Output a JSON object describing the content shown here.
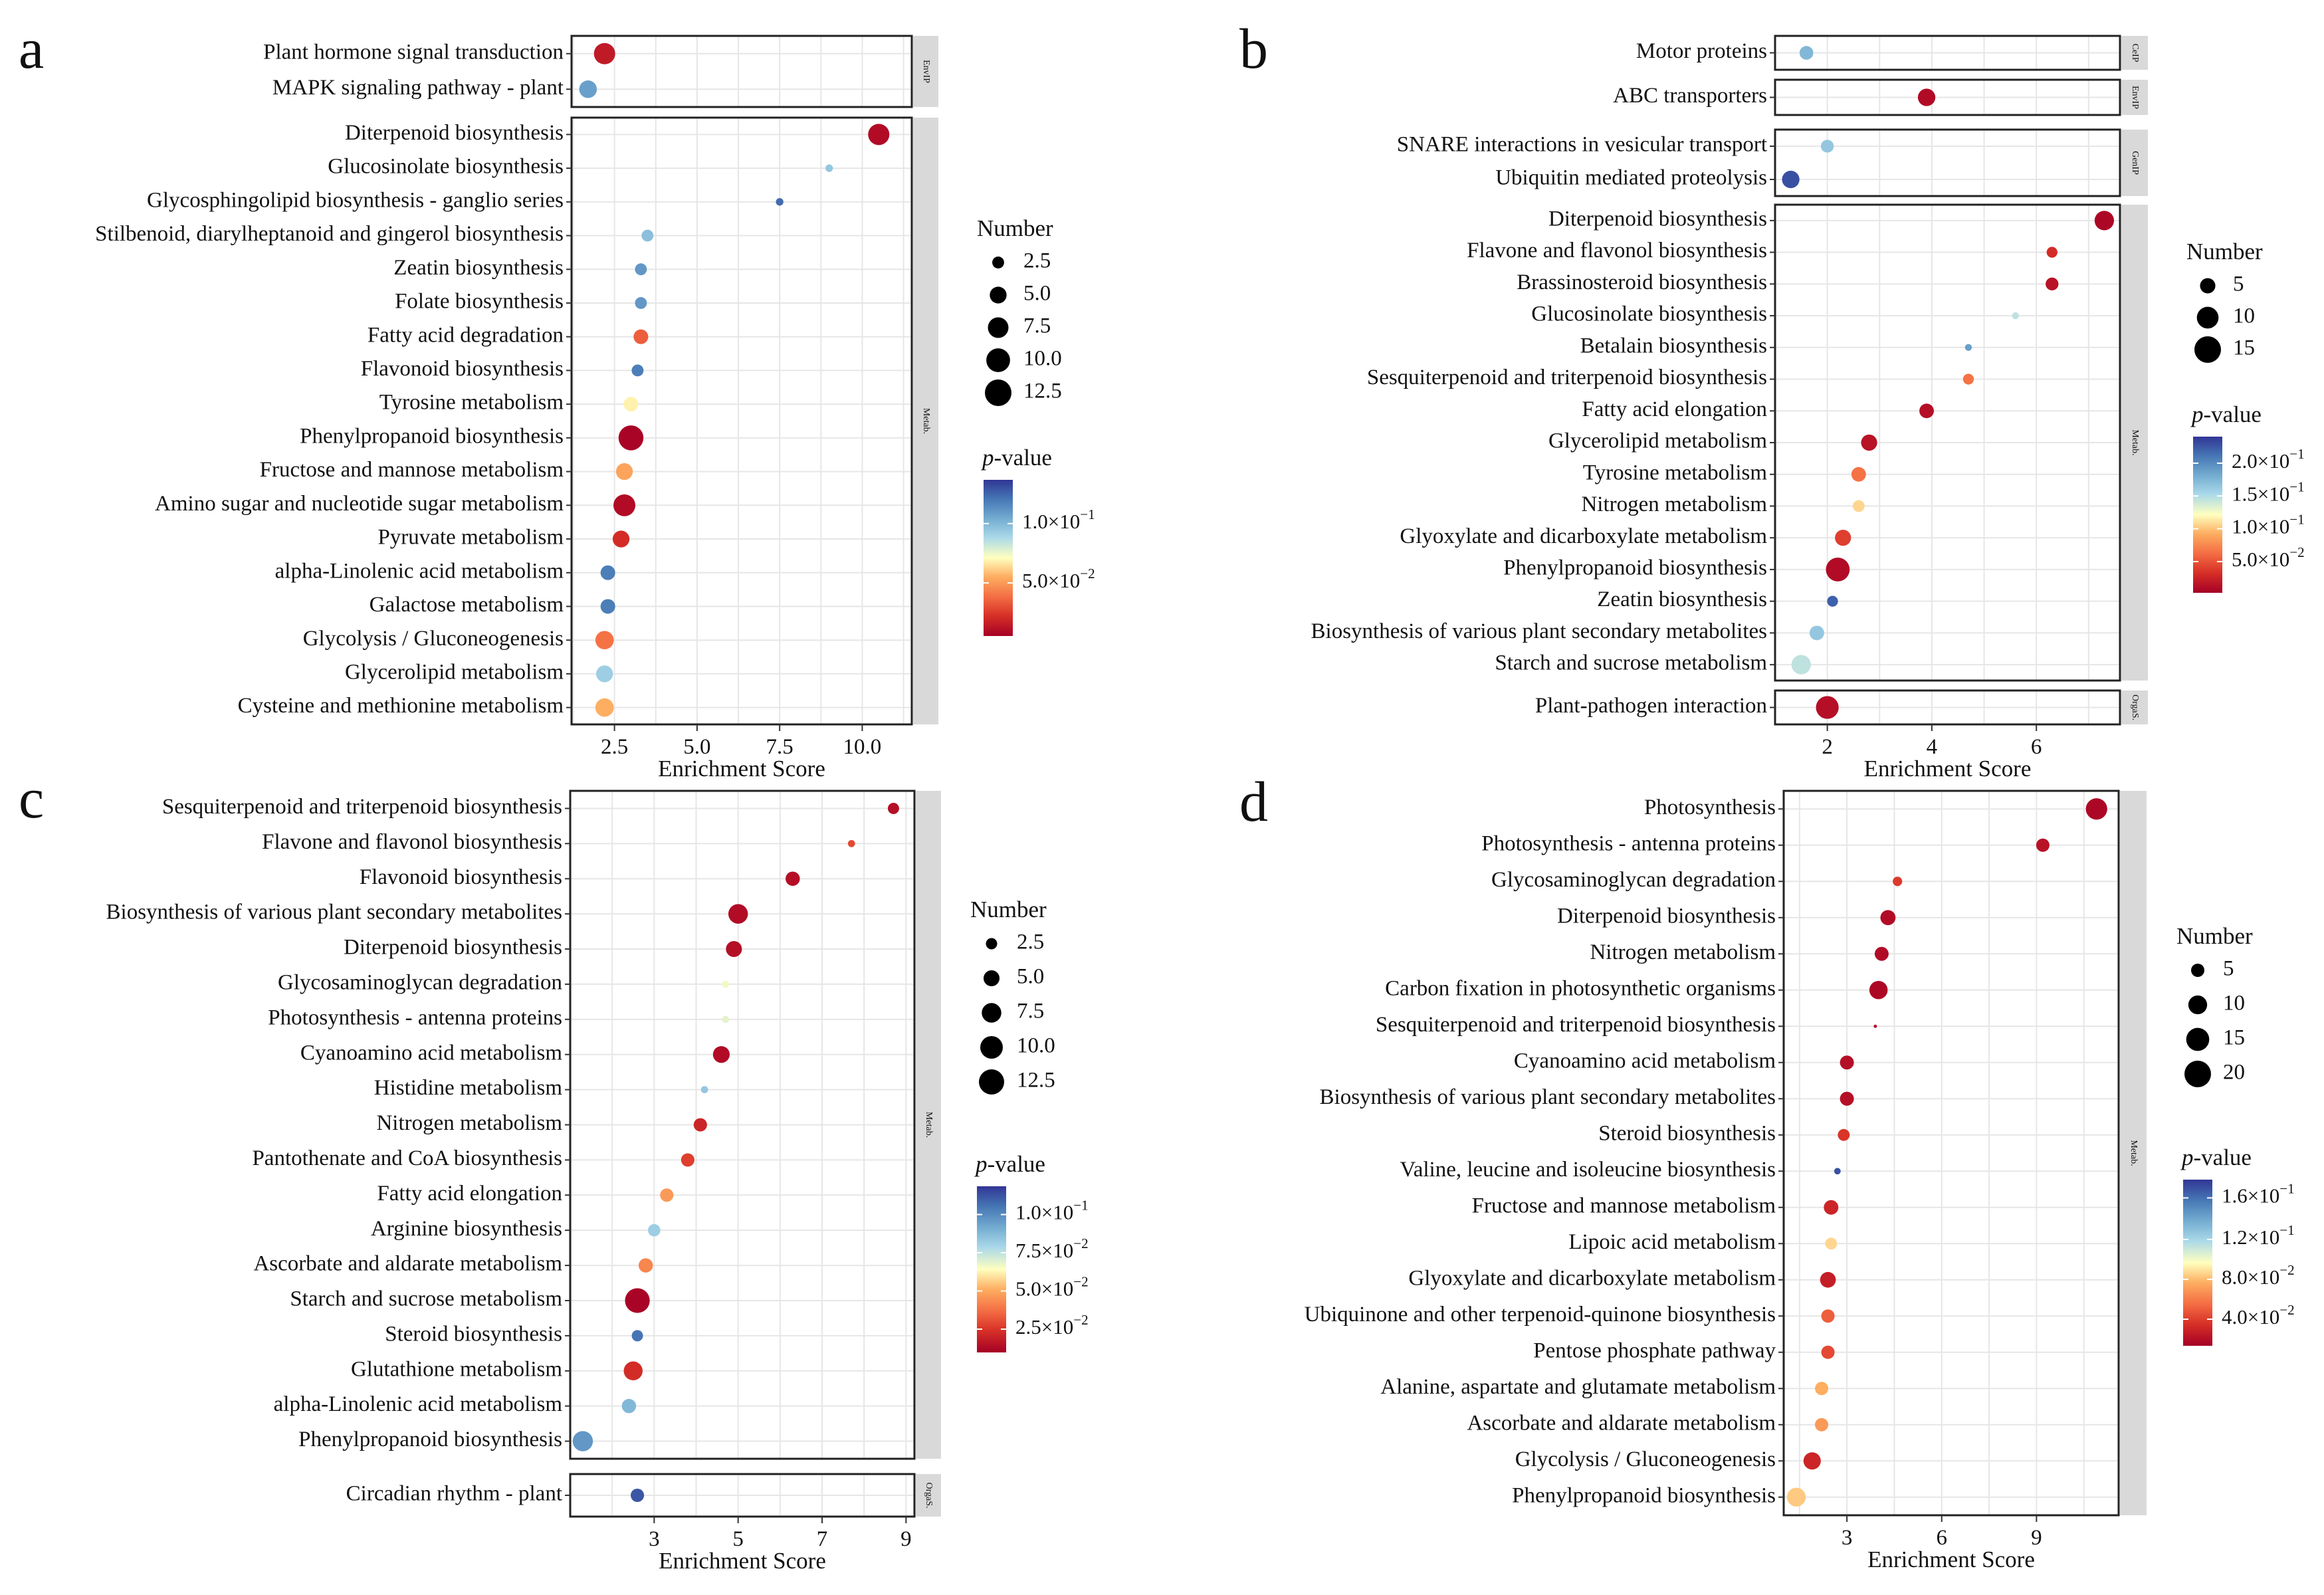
{
  "chart_data": [
    {
      "type": "scatter",
      "panel_letter": "a",
      "xlabel": "Enrichment Score",
      "xlim": [
        1.2,
        11.5
      ],
      "xticks": [
        2.5,
        5.0,
        7.5,
        10.0
      ],
      "xtick_labels": [
        "2.5",
        "5.0",
        "7.5",
        "10.0"
      ],
      "groups": [
        {
          "label": "EnvIP",
          "points": [
            {
              "term": "Plant hormone signal transduction",
              "x": 2.2,
              "number": 8,
              "color": 0.93
            },
            {
              "term": "MAPK signaling pathway - plant",
              "x": 1.7,
              "number": 5.5,
              "color": 0.22
            }
          ]
        },
        {
          "label": "Metab.",
          "points": [
            {
              "term": "Diterpenoid biosynthesis",
              "x": 10.5,
              "number": 8,
              "color": 0.97
            },
            {
              "term": "Glucosinolate biosynthesis",
              "x": 9.0,
              "number": 1,
              "color": 0.32
            },
            {
              "term": "Glycosphingolipid biosynthesis - ganglio series",
              "x": 7.5,
              "number": 1,
              "color": 0.1
            },
            {
              "term": "Stilbenoid, diarylheptanoid and gingerol biosynthesis",
              "x": 3.5,
              "number": 2.5,
              "color": 0.3
            },
            {
              "term": "Zeatin biosynthesis",
              "x": 3.3,
              "number": 2.5,
              "color": 0.2
            },
            {
              "term": "Folate biosynthesis",
              "x": 3.3,
              "number": 2.5,
              "color": 0.2
            },
            {
              "term": "Fatty acid degradation",
              "x": 3.3,
              "number": 3.8,
              "color": 0.78
            },
            {
              "term": "Flavonoid biosynthesis",
              "x": 3.2,
              "number": 2.5,
              "color": 0.14
            },
            {
              "term": "Tyrosine metabolism",
              "x": 3.0,
              "number": 3.8,
              "color": 0.52
            },
            {
              "term": "Phenylpropanoid biosynthesis",
              "x": 3.0,
              "number": 11,
              "color": 0.99
            },
            {
              "term": "Fructose and mannose metabolism",
              "x": 2.8,
              "number": 5,
              "color": 0.64
            },
            {
              "term": "Amino sugar and nucleotide sugar metabolism",
              "x": 2.8,
              "number": 8.5,
              "color": 0.97
            },
            {
              "term": "Pyruvate metabolism",
              "x": 2.7,
              "number": 5,
              "color": 0.88
            },
            {
              "term": "alpha-Linolenic acid metabolism",
              "x": 2.3,
              "number": 3.8,
              "color": 0.14
            },
            {
              "term": "Galactose metabolism",
              "x": 2.3,
              "number": 3.8,
              "color": 0.14
            },
            {
              "term": "Glycolysis / Gluconeogenesis",
              "x": 2.2,
              "number": 6,
              "color": 0.74
            },
            {
              "term": "Glycerolipid metabolism",
              "x": 2.2,
              "number": 5,
              "color": 0.34
            },
            {
              "term": "Cysteine and methionine metabolism",
              "x": 2.2,
              "number": 6,
              "color": 0.62
            }
          ]
        }
      ],
      "size_legend": {
        "title": "Number",
        "values": [
          2.5,
          5.0,
          7.5,
          10.0,
          12.5
        ],
        "labels": [
          "2.5",
          "5.0",
          "7.5",
          "10.0",
          "12.5"
        ]
      },
      "color_legend": {
        "title_italic": "p",
        "title_rest": "-value",
        "tick_labels": [
          "1.0×10",
          "5.0×10"
        ],
        "tick_exps": [
          "−1",
          "−2"
        ],
        "tick_fracs": [
          0.28,
          0.66
        ]
      }
    },
    {
      "type": "scatter",
      "panel_letter": "b",
      "xlabel": "Enrichment Score",
      "xlim": [
        1.0,
        7.6
      ],
      "xticks": [
        2,
        4,
        6
      ],
      "xtick_labels": [
        "2",
        "4",
        "6"
      ],
      "groups": [
        {
          "label": "CeIP",
          "points": [
            {
              "term": "Motor proteins",
              "x": 1.6,
              "number": 4,
              "color": 0.28
            }
          ]
        },
        {
          "label": "EnvIP",
          "points": [
            {
              "term": "ABC transporters",
              "x": 3.9,
              "number": 6.5,
              "color": 0.97
            }
          ]
        },
        {
          "label": "GenIP",
          "points": [
            {
              "term": "SNARE interactions in vesicular transport",
              "x": 2.0,
              "number": 3.5,
              "color": 0.32
            },
            {
              "term": "Ubiquitin mediated proteolysis",
              "x": 1.3,
              "number": 6.5,
              "color": 0.05
            }
          ]
        },
        {
          "label": "Metab.",
          "points": [
            {
              "term": "Diterpenoid biosynthesis",
              "x": 7.3,
              "number": 8,
              "color": 0.98
            },
            {
              "term": "Flavone and flavonol biosynthesis",
              "x": 6.3,
              "number": 2.5,
              "color": 0.88
            },
            {
              "term": "Brassinosteroid biosynthesis",
              "x": 6.3,
              "number": 3.5,
              "color": 0.95
            },
            {
              "term": "Glucosinolate biosynthesis",
              "x": 5.6,
              "number": 1,
              "color": 0.4
            },
            {
              "term": "Betalain biosynthesis",
              "x": 4.7,
              "number": 1,
              "color": 0.22
            },
            {
              "term": "Sesquiterpenoid and triterpenoid biosynthesis",
              "x": 4.7,
              "number": 2.5,
              "color": 0.74
            },
            {
              "term": "Fatty acid elongation",
              "x": 3.9,
              "number": 4.5,
              "color": 0.96
            },
            {
              "term": "Glycerolipid metabolism",
              "x": 2.8,
              "number": 5.5,
              "color": 0.95
            },
            {
              "term": "Tyrosine metabolism",
              "x": 2.6,
              "number": 4.5,
              "color": 0.74
            },
            {
              "term": "Nitrogen metabolism",
              "x": 2.6,
              "number": 3,
              "color": 0.56
            },
            {
              "term": "Glyoxylate and dicarboxylate metabolism",
              "x": 2.3,
              "number": 5.5,
              "color": 0.84
            },
            {
              "term": "Phenylpropanoid biosynthesis",
              "x": 2.2,
              "number": 12,
              "color": 0.97
            },
            {
              "term": "Zeatin biosynthesis",
              "x": 2.1,
              "number": 2.5,
              "color": 0.08
            },
            {
              "term": "Biosynthesis of various plant secondary metabolites",
              "x": 1.8,
              "number": 4.5,
              "color": 0.32
            },
            {
              "term": "Starch and sucrose metabolism",
              "x": 1.5,
              "number": 8,
              "color": 0.4
            }
          ]
        },
        {
          "label": "OrgaS.",
          "points": [
            {
              "term": "Plant-pathogen interaction",
              "x": 2.0,
              "number": 11,
              "color": 0.96
            }
          ]
        }
      ],
      "size_legend": {
        "title": "Number",
        "values": [
          5,
          10,
          15
        ],
        "labels": [
          "5",
          "10",
          "15"
        ]
      },
      "color_legend": {
        "title_italic": "p",
        "title_rest": "-value",
        "tick_labels": [
          "2.0×10",
          "1.5×10",
          "1.0×10",
          "5.0×10"
        ],
        "tick_exps": [
          "−1",
          "−1",
          "−1",
          "−2"
        ],
        "tick_fracs": [
          0.17,
          0.38,
          0.59,
          0.8
        ]
      }
    },
    {
      "type": "scatter",
      "panel_letter": "c",
      "xlabel": "Enrichment Score",
      "xlim": [
        1.0,
        9.2
      ],
      "xticks": [
        3,
        5,
        7,
        9
      ],
      "xtick_labels": [
        "3",
        "5",
        "7",
        "9"
      ],
      "groups": [
        {
          "label": "Metab.",
          "points": [
            {
              "term": "Sesquiterpenoid and triterpenoid biosynthesis",
              "x": 8.7,
              "number": 2.5,
              "color": 0.96
            },
            {
              "term": "Flavone and flavonol biosynthesis",
              "x": 7.7,
              "number": 1,
              "color": 0.82
            },
            {
              "term": "Flavonoid biosynthesis",
              "x": 6.3,
              "number": 4,
              "color": 0.96
            },
            {
              "term": "Biosynthesis of various plant secondary metabolites",
              "x": 5.0,
              "number": 7.5,
              "color": 0.97
            },
            {
              "term": "Diterpenoid biosynthesis",
              "x": 4.9,
              "number": 5,
              "color": 0.96
            },
            {
              "term": "Glycosaminoglycan degradation",
              "x": 4.7,
              "number": 1,
              "color": 0.48
            },
            {
              "term": "Photosynthesis - antenna proteins",
              "x": 4.7,
              "number": 1,
              "color": 0.46
            },
            {
              "term": "Cyanoamino acid metabolism",
              "x": 4.6,
              "number": 5.5,
              "color": 0.97
            },
            {
              "term": "Histidine metabolism",
              "x": 4.2,
              "number": 1,
              "color": 0.32
            },
            {
              "term": "Nitrogen metabolism",
              "x": 4.1,
              "number": 3.5,
              "color": 0.9
            },
            {
              "term": "Pantothenate and CoA biosynthesis",
              "x": 3.8,
              "number": 3.5,
              "color": 0.84
            },
            {
              "term": "Fatty acid elongation",
              "x": 3.3,
              "number": 3.5,
              "color": 0.66
            },
            {
              "term": "Arginine biosynthesis",
              "x": 3.0,
              "number": 3,
              "color": 0.34
            },
            {
              "term": "Ascorbate and aldarate metabolism",
              "x": 2.8,
              "number": 4,
              "color": 0.7
            },
            {
              "term": "Starch and sucrose metabolism",
              "x": 2.6,
              "number": 12,
              "color": 0.99
            },
            {
              "term": "Steroid biosynthesis",
              "x": 2.6,
              "number": 2.5,
              "color": 0.12
            },
            {
              "term": "Glutathione metabolism",
              "x": 2.5,
              "number": 7,
              "color": 0.88
            },
            {
              "term": "alpha-Linolenic acid metabolism",
              "x": 2.4,
              "number": 4,
              "color": 0.28
            },
            {
              "term": "Phenylpropanoid biosynthesis",
              "x": 1.3,
              "number": 8,
              "color": 0.2
            }
          ]
        },
        {
          "label": "OrgaS.",
          "points": [
            {
              "term": "Circadian rhythm - plant",
              "x": 2.6,
              "number": 3.5,
              "color": 0.06
            }
          ]
        }
      ],
      "size_legend": {
        "title": "Number",
        "values": [
          2.5,
          5.0,
          7.5,
          10.0,
          12.5
        ],
        "labels": [
          "2.5",
          "5.0",
          "7.5",
          "10.0",
          "12.5"
        ]
      },
      "color_legend": {
        "title_italic": "p",
        "title_rest": "-value",
        "tick_labels": [
          "1.0×10",
          "7.5×10",
          "5.0×10",
          "2.5×10"
        ],
        "tick_exps": [
          "−1",
          "−2",
          "−2",
          "−2"
        ],
        "tick_fracs": [
          0.17,
          0.4,
          0.63,
          0.86
        ]
      }
    },
    {
      "type": "scatter",
      "panel_letter": "d",
      "xlabel": "Enrichment Score",
      "xlim": [
        1.0,
        11.6
      ],
      "xticks": [
        3,
        6,
        9
      ],
      "xtick_labels": [
        "3",
        "6",
        "9"
      ],
      "groups": [
        {
          "label": "Metab.",
          "points": [
            {
              "term": "Photosynthesis",
              "x": 10.9,
              "number": 13,
              "color": 0.98
            },
            {
              "term": "Photosynthesis - antenna proteins",
              "x": 9.2,
              "number": 5,
              "color": 0.95
            },
            {
              "term": "Glycosaminoglycan degradation",
              "x": 4.6,
              "number": 2.5,
              "color": 0.85
            },
            {
              "term": "Diterpenoid biosynthesis",
              "x": 4.3,
              "number": 6.5,
              "color": 0.97
            },
            {
              "term": "Nitrogen metabolism",
              "x": 4.1,
              "number": 5.5,
              "color": 0.97
            },
            {
              "term": "Carbon fixation in photosynthetic organisms",
              "x": 4.0,
              "number": 9.5,
              "color": 0.98
            },
            {
              "term": "Sesquiterpenoid and triterpenoid biosynthesis",
              "x": 3.9,
              "number": 0.3,
              "color": 0.97
            },
            {
              "term": "Cyanoamino acid metabolism",
              "x": 3.0,
              "number": 5.5,
              "color": 0.96
            },
            {
              "term": "Biosynthesis of various plant secondary metabolites",
              "x": 3.0,
              "number": 5.5,
              "color": 0.96
            },
            {
              "term": "Steroid biosynthesis",
              "x": 2.9,
              "number": 4,
              "color": 0.86
            },
            {
              "term": "Valine, leucine and isoleucine biosynthesis",
              "x": 2.7,
              "number": 1.2,
              "color": 0.05
            },
            {
              "term": "Fructose and mannose metabolism",
              "x": 2.5,
              "number": 6,
              "color": 0.9
            },
            {
              "term": "Lipoic acid metabolism",
              "x": 2.5,
              "number": 4,
              "color": 0.56
            },
            {
              "term": "Glyoxylate and dicarboxylate metabolism",
              "x": 2.4,
              "number": 7,
              "color": 0.92
            },
            {
              "term": "Ubiquinone and other terpenoid-quinone biosynthesis",
              "x": 2.4,
              "number": 5,
              "color": 0.78
            },
            {
              "term": "Pentose phosphate pathway",
              "x": 2.4,
              "number": 5,
              "color": 0.82
            },
            {
              "term": "Alanine, aspartate and glutamate metabolism",
              "x": 2.2,
              "number": 5,
              "color": 0.62
            },
            {
              "term": "Ascorbate and aldarate metabolism",
              "x": 2.2,
              "number": 5,
              "color": 0.66
            },
            {
              "term": "Glycolysis / Gluconeogenesis",
              "x": 1.9,
              "number": 8.5,
              "color": 0.9
            },
            {
              "term": "Phenylpropanoid biosynthesis",
              "x": 1.4,
              "number": 10,
              "color": 0.58
            }
          ]
        }
      ],
      "size_legend": {
        "title": "Number",
        "values": [
          5,
          10,
          15,
          20
        ],
        "labels": [
          "5",
          "10",
          "15",
          "20"
        ]
      },
      "color_legend": {
        "title_italic": "p",
        "title_rest": "-value",
        "tick_labels": [
          "1.6×10",
          "1.2×10",
          "8.0×10",
          "4.0×10"
        ],
        "tick_exps": [
          "−1",
          "−1",
          "−2",
          "−2"
        ],
        "tick_fracs": [
          0.11,
          0.36,
          0.6,
          0.84
        ]
      }
    }
  ]
}
